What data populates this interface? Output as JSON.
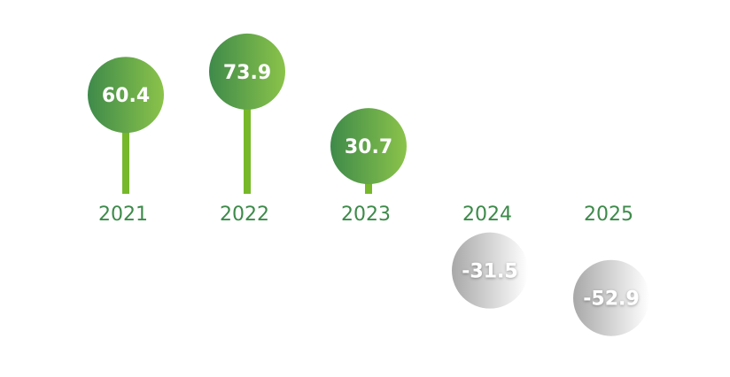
{
  "chart_data": {
    "type": "lollipop",
    "categories": [
      "2021",
      "2022",
      "2023",
      "2024",
      "2025"
    ],
    "values": [
      60.4,
      73.9,
      30.7,
      -31.5,
      -52.9
    ],
    "labels": [
      "60.4",
      "73.9",
      "30.7",
      "-31.5",
      "-52.9"
    ],
    "title": "",
    "xlabel": "",
    "ylabel": "",
    "grid": false,
    "colors": {
      "positive_gradient": [
        "#3e8a4a",
        "#8bc34a"
      ],
      "stem": "#76b82a",
      "negative_gradient": [
        "#a8a8a8",
        "#ffffff"
      ],
      "category_label": "#3d8a4a",
      "value_label": "#ffffff"
    }
  }
}
